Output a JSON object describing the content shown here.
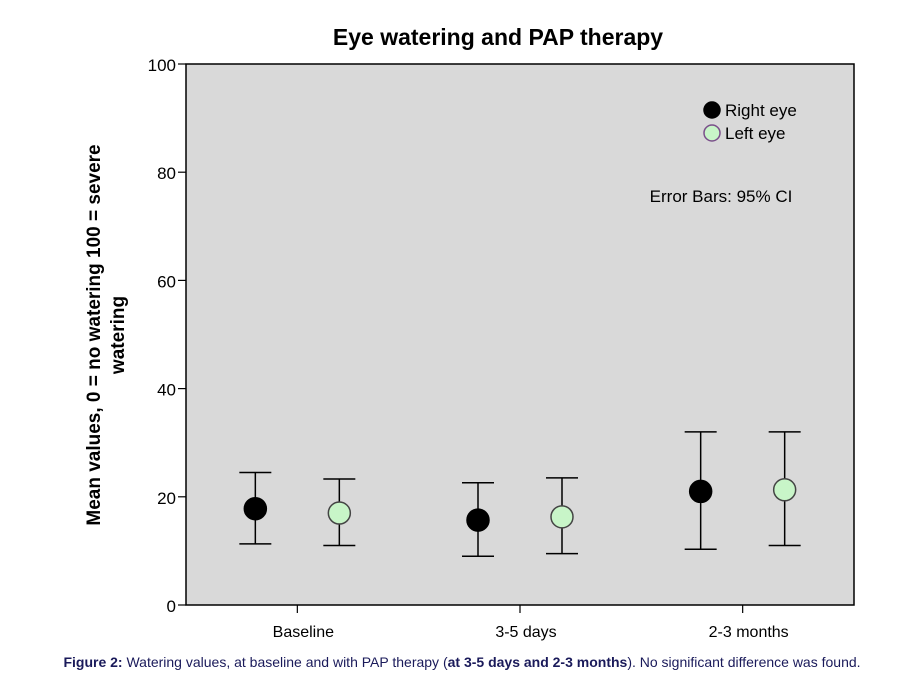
{
  "chart_data": {
    "type": "scatter",
    "title": "Eye watering and PAP therapy",
    "ylabel_line1": "Mean values, 0 = no watering 100 = severe",
    "ylabel_line2": "watering",
    "xlabel": "",
    "ylim": [
      0,
      100
    ],
    "yticks": [
      0,
      20,
      40,
      60,
      80,
      100
    ],
    "categories": [
      "Baseline",
      "3-5 days",
      "2-3 months"
    ],
    "series": [
      {
        "name": "Right eye",
        "color": "#000000",
        "values": [
          17.8,
          15.7,
          21.0
        ],
        "ci_low": [
          11.3,
          9.0,
          10.3
        ],
        "ci_high": [
          24.5,
          22.6,
          32.0
        ]
      },
      {
        "name": "Left eye",
        "color": "#c8f5c8",
        "values": [
          17.0,
          16.3,
          21.3
        ],
        "ci_low": [
          11.0,
          9.5,
          11.0
        ],
        "ci_high": [
          23.3,
          23.5,
          32.0
        ]
      }
    ],
    "annotation": "Error Bars: 95% CI",
    "legend_position": "top-right",
    "plot_background": "#d9d9d9"
  },
  "caption": {
    "prefix_bold": "Figure 2:",
    "text1": " Watering values, at baseline and with PAP therapy (",
    "bold2": "at 3-5 days and 2-3 months",
    "text3": "). No significant difference was found."
  }
}
